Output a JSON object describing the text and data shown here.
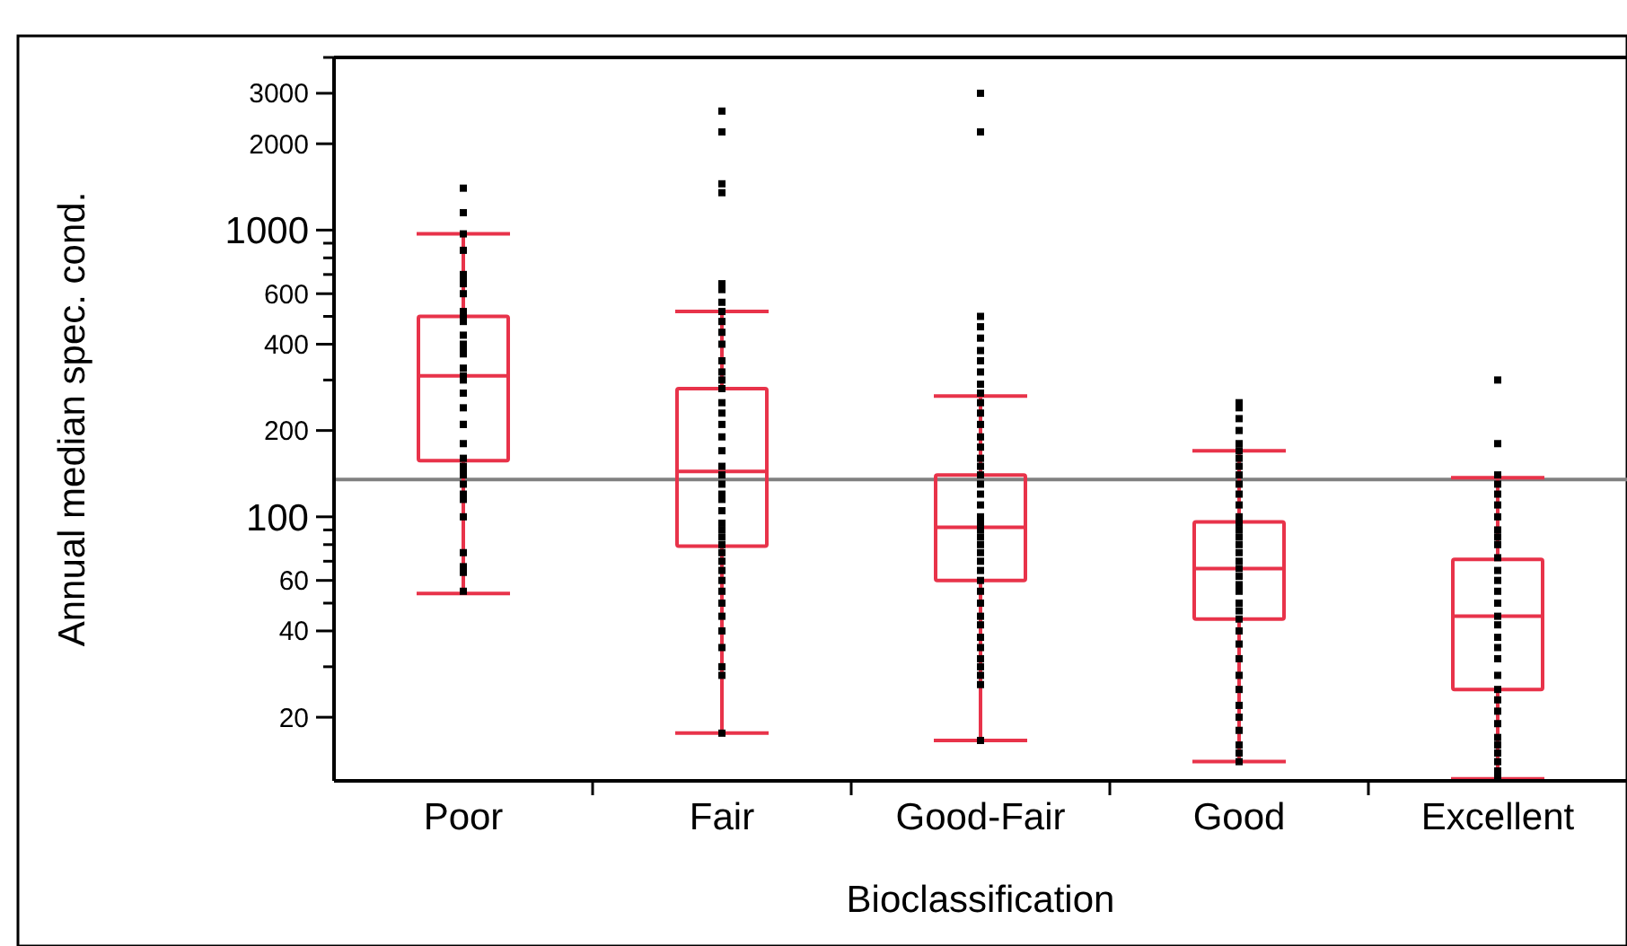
{
  "chart_data": {
    "type": "box",
    "xlabel": "Bioclassification",
    "ylabel": "Annual median spec. cond.",
    "log": true,
    "categories": [
      "Poor",
      "Fair",
      "Good-Fair",
      "Good",
      "Excellent"
    ],
    "boxes": [
      {
        "low": 54,
        "q1": 157,
        "median": 310,
        "q3": 500,
        "high": 970
      },
      {
        "low": 17.6,
        "q1": 79,
        "median": 144,
        "q3": 280,
        "high": 520
      },
      {
        "low": 16.6,
        "q1": 60,
        "median": 92,
        "q3": 140,
        "high": 264
      },
      {
        "low": 14,
        "q1": 44,
        "median": 66,
        "q3": 96,
        "high": 170
      },
      {
        "low": 12.2,
        "q1": 25,
        "median": 45,
        "q3": 71,
        "high": 137
      }
    ],
    "color": "#e8334a",
    "ylim": [
      12,
      4000
    ],
    "yticks": [
      20,
      {
        "value": 30,
        "label": null
      },
      40,
      {
        "value": 50,
        "label": null
      },
      60,
      {
        "value": 70,
        "label": null
      },
      {
        "value": 80,
        "label": null
      },
      {
        "value": 90,
        "label": null
      },
      100,
      200,
      {
        "value": 300,
        "label": null
      },
      400,
      {
        "value": 500,
        "label": null
      },
      600,
      {
        "value": 700,
        "label": null
      },
      {
        "value": 800,
        "label": null
      },
      {
        "value": 900,
        "label": null
      },
      1000,
      2000,
      3000,
      {
        "value": 4000,
        "label": null
      }
    ],
    "ref_lines": [
      {
        "axis": "y",
        "value": 135,
        "color": "#808080"
      }
    ],
    "series": [
      {
        "type": "scatter",
        "color": "#000000",
        "marker": "square",
        "x": [
          "Poor",
          "Poor",
          "Poor",
          "Poor",
          "Poor",
          "Poor",
          "Poor",
          "Poor",
          "Poor",
          "Poor",
          "Poor",
          "Poor",
          "Poor",
          "Poor",
          "Poor",
          "Poor",
          "Poor",
          "Poor",
          "Poor",
          "Poor",
          "Poor",
          "Poor",
          "Poor",
          "Poor",
          "Poor",
          "Poor",
          "Poor",
          "Poor",
          "Poor",
          "Poor",
          "Poor",
          "Poor",
          "Poor",
          "Poor",
          "Poor",
          "Fair",
          "Fair",
          "Fair",
          "Fair",
          "Fair",
          "Fair",
          "Fair",
          "Fair",
          "Fair",
          "Fair",
          "Fair",
          "Fair",
          "Fair",
          "Fair",
          "Fair",
          "Fair",
          "Fair",
          "Fair",
          "Fair",
          "Fair",
          "Fair",
          "Fair",
          "Fair",
          "Fair",
          "Fair",
          "Fair",
          "Fair",
          "Fair",
          "Fair",
          "Fair",
          "Fair",
          "Fair",
          "Fair",
          "Fair",
          "Fair",
          "Fair",
          "Fair",
          "Fair",
          "Fair",
          "Fair",
          "Fair",
          "Fair",
          "Good-Fair",
          "Good-Fair",
          "Good-Fair",
          "Good-Fair",
          "Good-Fair",
          "Good-Fair",
          "Good-Fair",
          "Good-Fair",
          "Good-Fair",
          "Good-Fair",
          "Good-Fair",
          "Good-Fair",
          "Good-Fair",
          "Good-Fair",
          "Good-Fair",
          "Good-Fair",
          "Good-Fair",
          "Good-Fair",
          "Good-Fair",
          "Good-Fair",
          "Good-Fair",
          "Good-Fair",
          "Good-Fair",
          "Good-Fair",
          "Good-Fair",
          "Good-Fair",
          "Good-Fair",
          "Good-Fair",
          "Good-Fair",
          "Good-Fair",
          "Good-Fair",
          "Good-Fair",
          "Good-Fair",
          "Good-Fair",
          "Good-Fair",
          "Good-Fair",
          "Good-Fair",
          "Good-Fair",
          "Good-Fair",
          "Good-Fair",
          "Good-Fair",
          "Good",
          "Good",
          "Good",
          "Good",
          "Good",
          "Good",
          "Good",
          "Good",
          "Good",
          "Good",
          "Good",
          "Good",
          "Good",
          "Good",
          "Good",
          "Good",
          "Good",
          "Good",
          "Good",
          "Good",
          "Good",
          "Good",
          "Good",
          "Good",
          "Good",
          "Good",
          "Good",
          "Good",
          "Good",
          "Good",
          "Good",
          "Good",
          "Good",
          "Good",
          "Good",
          "Good",
          "Good",
          "Excellent",
          "Excellent",
          "Excellent",
          "Excellent",
          "Excellent",
          "Excellent",
          "Excellent",
          "Excellent",
          "Excellent",
          "Excellent",
          "Excellent",
          "Excellent",
          "Excellent",
          "Excellent",
          "Excellent",
          "Excellent",
          "Excellent",
          "Excellent",
          "Excellent",
          "Excellent",
          "Excellent",
          "Excellent",
          "Excellent",
          "Excellent",
          "Excellent",
          "Excellent",
          "Excellent",
          "Excellent",
          "Excellent",
          "Excellent",
          "Excellent"
        ],
        "values": [
          1400,
          1150,
          970,
          850,
          700,
          680,
          650,
          600,
          520,
          500,
          480,
          430,
          400,
          390,
          370,
          330,
          310,
          300,
          270,
          240,
          210,
          210,
          180,
          160,
          150,
          145,
          140,
          130,
          120,
          115,
          100,
          75,
          67,
          64,
          55,
          2600,
          2200,
          1450,
          1350,
          650,
          620,
          560,
          520,
          480,
          440,
          400,
          350,
          320,
          300,
          280,
          250,
          230,
          210,
          190,
          170,
          150,
          140,
          130,
          120,
          115,
          105,
          95,
          90,
          85,
          80,
          75,
          70,
          65,
          60,
          55,
          50,
          45,
          40,
          35,
          30,
          28,
          17.6,
          3000,
          2200,
          500,
          460,
          420,
          380,
          350,
          320,
          290,
          270,
          250,
          230,
          210,
          190,
          175,
          160,
          150,
          140,
          130,
          120,
          110,
          100,
          95,
          90,
          85,
          80,
          75,
          70,
          65,
          60,
          55,
          50,
          45,
          42,
          38,
          35,
          32,
          30,
          28,
          26,
          16.6,
          250,
          240,
          220,
          200,
          180,
          170,
          160,
          150,
          140,
          130,
          120,
          110,
          100,
          95,
          90,
          85,
          80,
          75,
          70,
          66,
          62,
          58,
          55,
          50,
          47,
          44,
          40,
          36,
          32,
          28,
          25,
          22,
          20,
          18,
          16,
          15,
          14,
          300,
          180,
          140,
          130,
          120,
          110,
          100,
          90,
          85,
          80,
          72,
          65,
          60,
          55,
          50,
          45,
          42,
          38,
          35,
          32,
          28,
          25,
          23,
          21,
          19,
          17,
          16,
          15,
          14,
          13,
          12.5
        ]
      }
    ]
  }
}
